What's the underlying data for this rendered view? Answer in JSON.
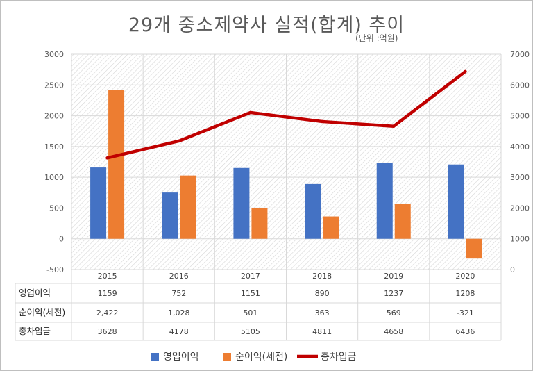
{
  "chart_data": {
    "type": "bar",
    "title": "29개 중소제약사 실적(합계) 추이",
    "unit_note": "(단위 :억원)",
    "categories": [
      "2015",
      "2016",
      "2017",
      "2018",
      "2019",
      "2020"
    ],
    "series": [
      {
        "name": "영업이익",
        "kind": "bar",
        "axis": "left",
        "color": "#4472c4",
        "values": [
          1159,
          752,
          1151,
          890,
          1237,
          1208
        ]
      },
      {
        "name": "순이익(세전)",
        "kind": "bar",
        "axis": "left",
        "color": "#ed7d31",
        "values": [
          2422,
          1028,
          501,
          363,
          569,
          -321
        ]
      },
      {
        "name": "총차입금",
        "kind": "line",
        "axis": "right",
        "color": "#c00000",
        "values": [
          3628,
          4178,
          5105,
          4811,
          4658,
          6436
        ]
      }
    ],
    "y_left": {
      "min": -500,
      "max": 3000,
      "step": 500,
      "ticks": [
        "3000",
        "2500",
        "2000",
        "1500",
        "1000",
        "500",
        "0",
        "-500"
      ]
    },
    "y_right": {
      "min": 0,
      "max": 7000,
      "step": 1000,
      "ticks": [
        "7000",
        "6000",
        "5000",
        "4000",
        "3000",
        "2000",
        "1000",
        "0"
      ]
    },
    "table": {
      "rows": [
        {
          "label": "영업이익",
          "cells": [
            "1159",
            "752",
            "1151",
            "890",
            "1237",
            "1208"
          ]
        },
        {
          "label": "순이익(세전)",
          "cells": [
            "2,422",
            "1,028",
            "501",
            "363",
            "569",
            "-321"
          ]
        },
        {
          "label": "총차입금",
          "cells": [
            "3628",
            "4178",
            "5105",
            "4811",
            "4658",
            "6436"
          ]
        }
      ]
    },
    "legend": [
      "영업이익",
      "순이익(세전)",
      "총차입금"
    ],
    "legend_position": "bottom",
    "grid": true
  }
}
